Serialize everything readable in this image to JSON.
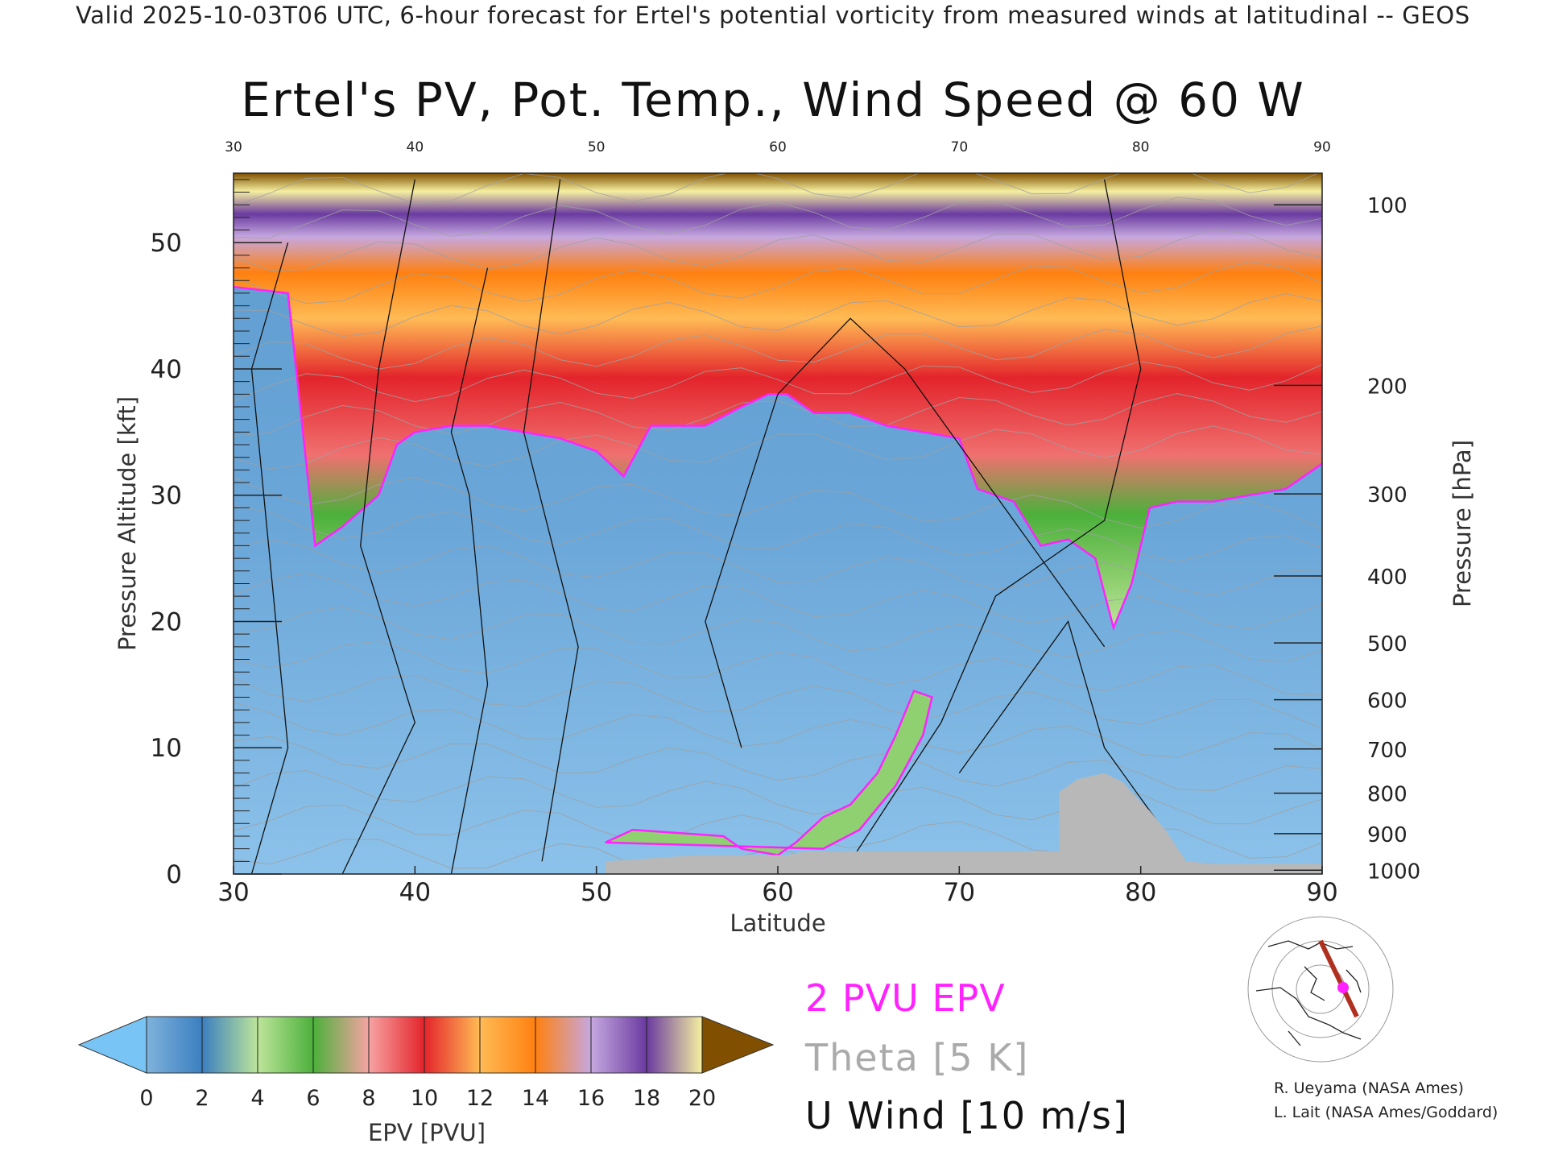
{
  "header": "Valid 2025-10-03T06 UTC, 6-hour forecast for Ertel's potential vorticity from measured winds at latitudinal -- GEOS",
  "chart_data": {
    "type": "heatmap",
    "title": "Ertel's PV, Pot. Temp., Wind Speed @ 60 W",
    "xlabel": "Latitude",
    "ylabel": "Pressure Altitude [kft]",
    "y2label": "Pressure [hPa]",
    "x_ticks": [
      30,
      40,
      50,
      60,
      70,
      80,
      90
    ],
    "xlim": [
      30,
      90
    ],
    "y_ticks": [
      0,
      10,
      20,
      30,
      40,
      50
    ],
    "ylim": [
      0,
      55.5
    ],
    "y2_ticks": [
      {
        "label": "100",
        "kft": 53
      },
      {
        "label": "200",
        "kft": 38.7
      },
      {
        "label": "300",
        "kft": 30.1
      },
      {
        "label": "400",
        "kft": 23.6
      },
      {
        "label": "500",
        "kft": 18.3
      },
      {
        "label": "600",
        "kft": 13.8
      },
      {
        "label": "700",
        "kft": 9.9
      },
      {
        "label": "800",
        "kft": 6.4
      },
      {
        "label": "900",
        "kft": 3.2
      },
      {
        "label": "1000",
        "kft": 0.3
      }
    ],
    "pv2_tropopause": [
      [
        30,
        46.5
      ],
      [
        33,
        46
      ],
      [
        34.5,
        26
      ],
      [
        36,
        27.5
      ],
      [
        38,
        30
      ],
      [
        39,
        34
      ],
      [
        40,
        35
      ],
      [
        42,
        35.5
      ],
      [
        44,
        35.5
      ],
      [
        46,
        35
      ],
      [
        48,
        34.5
      ],
      [
        50,
        33.5
      ],
      [
        51.5,
        31.5
      ],
      [
        53,
        35.5
      ],
      [
        56,
        35.5
      ],
      [
        58,
        37
      ],
      [
        59.5,
        38
      ],
      [
        60.5,
        38
      ],
      [
        62,
        36.5
      ],
      [
        64,
        36.5
      ],
      [
        66,
        35.5
      ],
      [
        68,
        35
      ],
      [
        70,
        34.5
      ],
      [
        71,
        30.5
      ],
      [
        73,
        29.5
      ],
      [
        74.5,
        26
      ],
      [
        76,
        26.5
      ],
      [
        77.5,
        25
      ],
      [
        78.5,
        19.5
      ],
      [
        79.5,
        23
      ],
      [
        80.5,
        29
      ],
      [
        82,
        29.5
      ],
      [
        84,
        29.5
      ],
      [
        86,
        30
      ],
      [
        88,
        30.5
      ],
      [
        90,
        32.5
      ]
    ],
    "surface_mask": [
      [
        50.5,
        1
      ],
      [
        55.5,
        1.5
      ],
      [
        60.5,
        1.5
      ],
      [
        61.5,
        1.8
      ],
      [
        75.5,
        1.8
      ],
      [
        75.5,
        6.5
      ],
      [
        76.5,
        7.5
      ],
      [
        78,
        8
      ],
      [
        79,
        7.3
      ],
      [
        79.8,
        6
      ],
      [
        80.5,
        5
      ],
      [
        81.5,
        3.2
      ],
      [
        82.5,
        1
      ],
      [
        84,
        0.8
      ],
      [
        90,
        0.8
      ]
    ],
    "pv_band_low": [
      [
        50.5,
        2.5
      ],
      [
        52,
        3.5
      ],
      [
        54,
        3.3
      ],
      [
        57,
        3
      ],
      [
        58,
        2
      ],
      [
        60,
        1.5
      ],
      [
        61,
        2.5
      ],
      [
        62.5,
        4.5
      ],
      [
        64,
        5.5
      ],
      [
        65.5,
        8
      ],
      [
        66.5,
        11
      ],
      [
        67.5,
        14.5
      ],
      [
        68.5,
        14
      ],
      [
        68,
        11
      ],
      [
        66.5,
        7
      ],
      [
        64.5,
        3.5
      ],
      [
        62.5,
        2
      ]
    ],
    "colorbar": {
      "label": "EPV [PVU]",
      "ticks": [
        0,
        2,
        4,
        6,
        8,
        10,
        12,
        14,
        16,
        18,
        20
      ],
      "colors": [
        "#78c4f4",
        "#7fb2dc",
        "#3b7fc0",
        "#bde59a",
        "#4cb03b",
        "#f7a3a3",
        "#e3242b",
        "#ffbb55",
        "#ff8010",
        "#c6a8e0",
        "#6a3aa0",
        "#f5f0a0",
        "#805000"
      ]
    }
  },
  "legend": {
    "epv": "2 PVU EPV",
    "theta": "Theta [5 K]",
    "uwind": "U Wind [10 m/s]"
  },
  "credits": [
    "R. Ueyama (NASA Ames)",
    "L. Lait (NASA Ames/Goddard)"
  ]
}
